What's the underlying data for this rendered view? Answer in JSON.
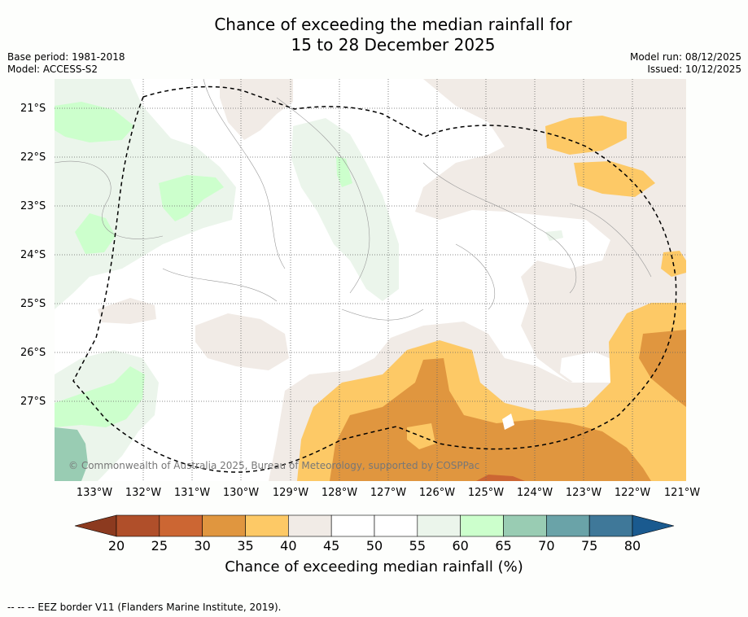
{
  "title": {
    "line1": "Chance of exceeding the median rainfall for",
    "line2": "15 to 28 December 2025"
  },
  "meta_left": {
    "base_period": "Base period: 1981-2018",
    "model": "Model: ACCESS-S2"
  },
  "meta_right": {
    "model_run": "Model run: 08/12/2025",
    "issued": "Issued: 10/12/2025"
  },
  "map": {
    "lat_labels": [
      "21°S",
      "22°S",
      "23°S",
      "24°S",
      "25°S",
      "26°S",
      "27°S"
    ],
    "lon_labels": [
      "133°W",
      "132°W",
      "131°W",
      "130°W",
      "129°W",
      "128°W",
      "127°W",
      "126°W",
      "125°W",
      "124°W",
      "123°W",
      "122°W",
      "121°W"
    ],
    "copyright": "© Commonwealth of Australia 2025, Bureau of Meteorology, supported by COSPPac",
    "eez_color": "#000000"
  },
  "colorbar": {
    "ticks": [
      "20",
      "25",
      "30",
      "35",
      "40",
      "45",
      "50",
      "55",
      "60",
      "65",
      "70",
      "75",
      "80"
    ],
    "colors": [
      "#8c3a1f",
      "#b04f2a",
      "#cc6633",
      "#e0963f",
      "#fdc966",
      "#f1ebe6",
      "#ffffff",
      "#ffffff",
      "#ebf5eb",
      "#ccffcc",
      "#99ccb3",
      "#6aa3a8",
      "#3f7899",
      "#1a5a8f"
    ],
    "title": "Chance of exceeding median rainfall (%)"
  },
  "footer": "-- -- -- EEZ border V11 (Flanders Marine Institute, 2019)."
}
